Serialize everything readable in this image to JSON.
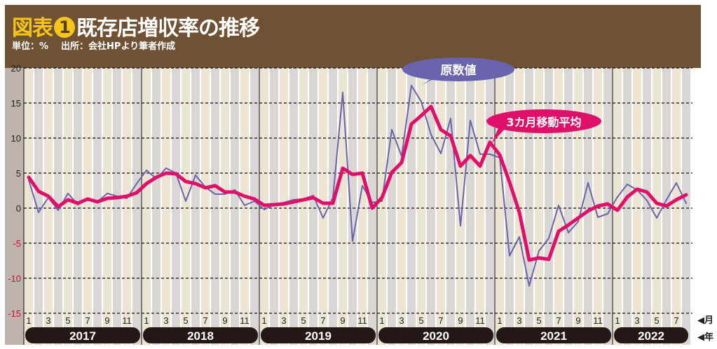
{
  "header": {
    "title_prefix": "図表",
    "title_number": "1",
    "title": "既存店増収率の推移",
    "unit": "単位：%",
    "source": "出所：会社HPより筆者作成"
  },
  "chart_data": {
    "type": "line",
    "title": "既存店増収率の推移",
    "xlabel": "年 / 月",
    "ylabel": "%",
    "ylim": [
      -15,
      20
    ],
    "yticks": [
      20,
      15,
      10,
      5,
      0,
      -5,
      -10,
      -15
    ],
    "grid": true,
    "years": [
      "2017",
      "2018",
      "2019",
      "2020",
      "2021",
      "2022"
    ],
    "month_ticks": [
      "1",
      "3",
      "5",
      "7",
      "9",
      "11"
    ],
    "month_axis_label": "◀月",
    "year_axis_label": "◀年",
    "x_start": "2017-01",
    "x_end": "2022-08",
    "series": [
      {
        "name": "原数値",
        "color": "#6a63ad",
        "values": [
          4.0,
          -0.6,
          1.5,
          -0.3,
          2.1,
          0.5,
          1.2,
          0.9,
          2.1,
          1.7,
          1.4,
          3.5,
          5.4,
          4.2,
          5.7,
          5.0,
          1.0,
          4.7,
          3.0,
          2.0,
          2.0,
          2.6,
          0.4,
          1.0,
          -0.2,
          0.5,
          0.8,
          1.2,
          1.3,
          1.8,
          -1.4,
          1.5,
          16.5,
          -4.7,
          3.2,
          0.8,
          1.0,
          11.2,
          7.4,
          17.5,
          15.2,
          10.5,
          7.8,
          12.8,
          -2.5,
          12.5,
          7.7,
          7.7,
          7.2,
          -6.8,
          -4.1,
          -11.1,
          -6.1,
          -4.3,
          0.4,
          -3.5,
          -1.9,
          3.6,
          -1.3,
          -0.8,
          1.6,
          3.4,
          2.6,
          1.1,
          -1.4,
          1.2,
          3.6,
          0.7
        ]
      },
      {
        "name": "3カ月移動平均",
        "color": "#e0106a",
        "values": [
          4.4,
          2.4,
          1.7,
          0.2,
          1.2,
          0.7,
          1.3,
          0.9,
          1.4,
          1.5,
          1.7,
          2.2,
          3.5,
          4.4,
          5.0,
          4.9,
          3.8,
          3.5,
          2.9,
          3.2,
          2.3,
          2.3,
          1.7,
          1.3,
          0.4,
          0.5,
          0.6,
          0.9,
          1.2,
          1.5,
          0.7,
          0.7,
          5.7,
          4.8,
          5.0,
          0.0,
          1.5,
          5.1,
          6.5,
          12.0,
          13.2,
          14.5,
          11.2,
          10.3,
          6.0,
          7.5,
          6.0,
          9.4,
          7.6,
          3.7,
          -0.6,
          -7.4,
          -7.1,
          -7.3,
          -3.3,
          -2.4,
          -1.4,
          -0.4,
          0.3,
          0.6,
          -0.3,
          1.6,
          2.7,
          2.3,
          0.7,
          0.3,
          1.2,
          1.9
        ]
      }
    ],
    "annotations": [
      "原数値",
      "3カ月移動平均"
    ]
  }
}
